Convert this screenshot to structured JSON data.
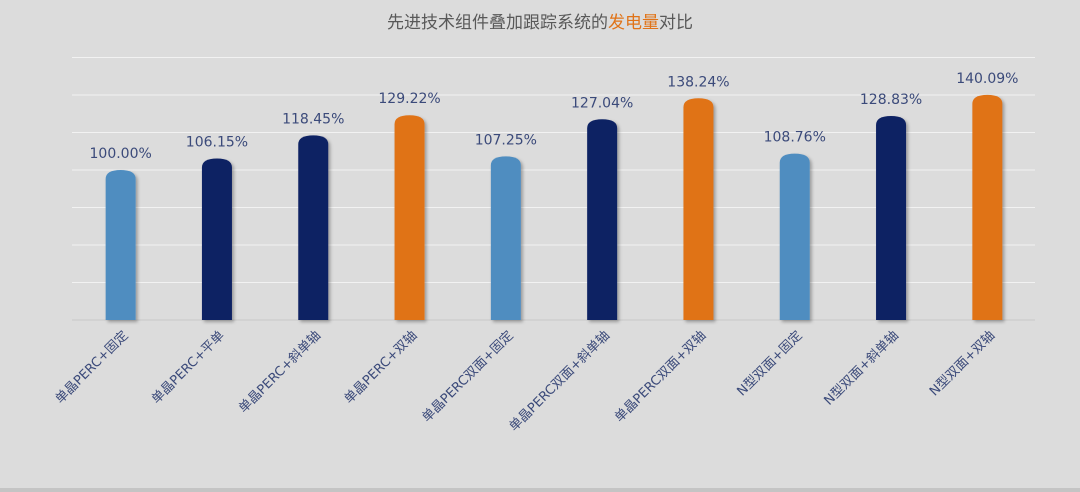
{
  "chart_data": {
    "type": "bar",
    "title_parts": [
      "先进技术组件叠加跟踪系统的",
      "发电量",
      "对比"
    ],
    "categories": [
      "单晶PERC+固定",
      "单晶PERC+平单",
      "单晶PERC+斜单轴",
      "单晶PERC+双轴",
      "单晶PERC双面+固定",
      "单晶PERC双面+斜单轴",
      "单晶PERC双面+双轴",
      "N型双面+固定",
      "N型双面+斜单轴",
      "N型双面+双轴"
    ],
    "values": [
      100.0,
      106.15,
      118.45,
      129.22,
      107.25,
      127.04,
      138.24,
      108.76,
      128.83,
      140.09
    ],
    "data_labels": [
      "100.00%",
      "106.15%",
      "118.45%",
      "129.22%",
      "107.25%",
      "127.04%",
      "138.24%",
      "108.76%",
      "128.83%",
      "140.09%"
    ],
    "bar_colors": [
      "#4f8dc0",
      "#0f2163",
      "#0f2163",
      "#e07318",
      "#4f8dc0",
      "#0f2163",
      "#e07318",
      "#4f8dc0",
      "#0f2163",
      "#e07318"
    ],
    "unit": "%",
    "ylim": [
      20,
      160
    ],
    "ytick_step": 20,
    "grid": true,
    "y_tick_labels_shown": false,
    "legend": "none",
    "colors": {
      "light_blue": "#4f8dc0",
      "navy": "#0f2163",
      "orange": "#e07318",
      "title_highlight": "#e07318"
    }
  }
}
